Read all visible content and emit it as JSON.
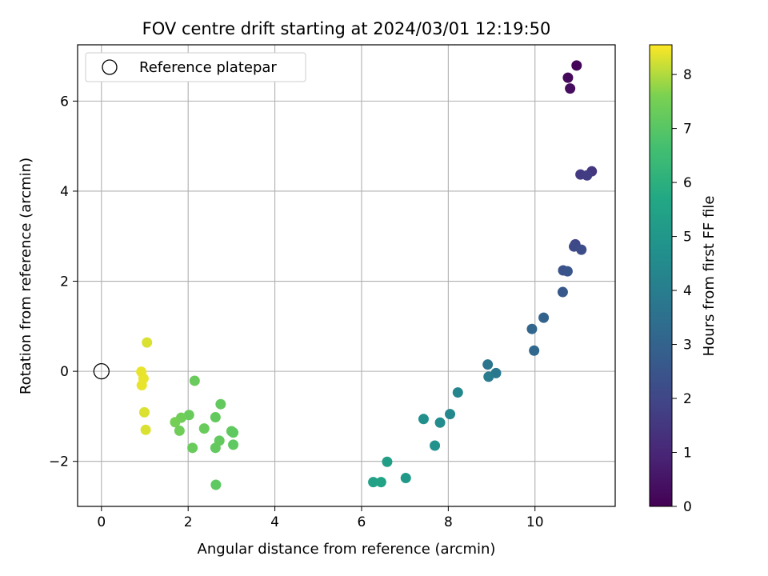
{
  "chart_data": {
    "type": "scatter",
    "title": "FOV centre drift starting at 2024/03/01 12:19:50",
    "xlabel": "Angular distance from reference (arcmin)",
    "ylabel": "Rotation from reference (arcmin)",
    "xlim": [
      -0.55,
      11.85
    ],
    "ylim": [
      -3.0,
      7.25
    ],
    "xticks": [
      0,
      2,
      4,
      6,
      8,
      10
    ],
    "yticks": [
      -2,
      0,
      2,
      4,
      6
    ],
    "ytick_labels": [
      "−2",
      "0",
      "2",
      "4",
      "6"
    ],
    "grid": true,
    "legend": {
      "location": "upper-left",
      "entries": [
        "Reference platepar"
      ]
    },
    "reference_point": {
      "x": 0,
      "y": 0,
      "marker": "hollow-circle"
    },
    "colorbar": {
      "label": "Hours from first FF file",
      "colormap": "viridis",
      "range": [
        0,
        8.55
      ],
      "ticks": [
        0,
        1,
        2,
        3,
        4,
        5,
        6,
        7,
        8
      ]
    },
    "points": [
      {
        "x": 10.96,
        "y": 6.79,
        "c": 0.1
      },
      {
        "x": 10.76,
        "y": 6.52,
        "c": 0.2
      },
      {
        "x": 10.81,
        "y": 6.28,
        "c": 0.3
      },
      {
        "x": 11.31,
        "y": 4.44,
        "c": 1.5
      },
      {
        "x": 11.05,
        "y": 4.37,
        "c": 1.6
      },
      {
        "x": 11.2,
        "y": 4.35,
        "c": 1.7
      },
      {
        "x": 10.93,
        "y": 2.82,
        "c": 2.0
      },
      {
        "x": 10.9,
        "y": 2.77,
        "c": 2.1
      },
      {
        "x": 11.07,
        "y": 2.7,
        "c": 2.2
      },
      {
        "x": 10.65,
        "y": 2.24,
        "c": 2.4
      },
      {
        "x": 10.75,
        "y": 2.22,
        "c": 2.5
      },
      {
        "x": 10.64,
        "y": 1.76,
        "c": 2.6
      },
      {
        "x": 10.2,
        "y": 1.19,
        "c": 3.0
      },
      {
        "x": 9.93,
        "y": 0.94,
        "c": 3.1
      },
      {
        "x": 9.98,
        "y": 0.46,
        "c": 3.2
      },
      {
        "x": 8.91,
        "y": 0.15,
        "c": 3.7
      },
      {
        "x": 9.1,
        "y": -0.04,
        "c": 3.8
      },
      {
        "x": 8.93,
        "y": -0.12,
        "c": 3.9
      },
      {
        "x": 8.22,
        "y": -0.47,
        "c": 4.3
      },
      {
        "x": 8.04,
        "y": -0.95,
        "c": 4.4
      },
      {
        "x": 7.43,
        "y": -1.06,
        "c": 4.7
      },
      {
        "x": 7.81,
        "y": -1.14,
        "c": 4.6
      },
      {
        "x": 7.69,
        "y": -1.65,
        "c": 4.8
      },
      {
        "x": 6.59,
        "y": -2.01,
        "c": 5.3
      },
      {
        "x": 7.02,
        "y": -2.37,
        "c": 5.1
      },
      {
        "x": 6.27,
        "y": -2.46,
        "c": 5.4
      },
      {
        "x": 6.45,
        "y": -2.46,
        "c": 5.5
      },
      {
        "x": 2.15,
        "y": -0.21,
        "c": 7.3
      },
      {
        "x": 2.75,
        "y": -0.73,
        "c": 7.2
      },
      {
        "x": 2.02,
        "y": -0.97,
        "c": 7.3
      },
      {
        "x": 1.84,
        "y": -1.03,
        "c": 7.4
      },
      {
        "x": 2.63,
        "y": -1.02,
        "c": 7.2
      },
      {
        "x": 1.7,
        "y": -1.13,
        "c": 7.5
      },
      {
        "x": 2.37,
        "y": -1.27,
        "c": 7.3
      },
      {
        "x": 1.8,
        "y": -1.32,
        "c": 7.4
      },
      {
        "x": 3.0,
        "y": -1.33,
        "c": 7.2
      },
      {
        "x": 3.04,
        "y": -1.36,
        "c": 7.1
      },
      {
        "x": 2.72,
        "y": -1.54,
        "c": 7.2
      },
      {
        "x": 3.04,
        "y": -1.63,
        "c": 7.1
      },
      {
        "x": 2.1,
        "y": -1.7,
        "c": 7.3
      },
      {
        "x": 2.63,
        "y": -1.7,
        "c": 7.2
      },
      {
        "x": 2.64,
        "y": -2.52,
        "c": 7.1
      },
      {
        "x": 1.05,
        "y": 0.64,
        "c": 8.3
      },
      {
        "x": 0.92,
        "y": -0.01,
        "c": 8.4
      },
      {
        "x": 0.97,
        "y": -0.16,
        "c": 8.4
      },
      {
        "x": 0.93,
        "y": -0.31,
        "c": 8.4
      },
      {
        "x": 0.99,
        "y": -0.91,
        "c": 8.3
      },
      {
        "x": 1.02,
        "y": -1.3,
        "c": 8.3
      }
    ]
  }
}
